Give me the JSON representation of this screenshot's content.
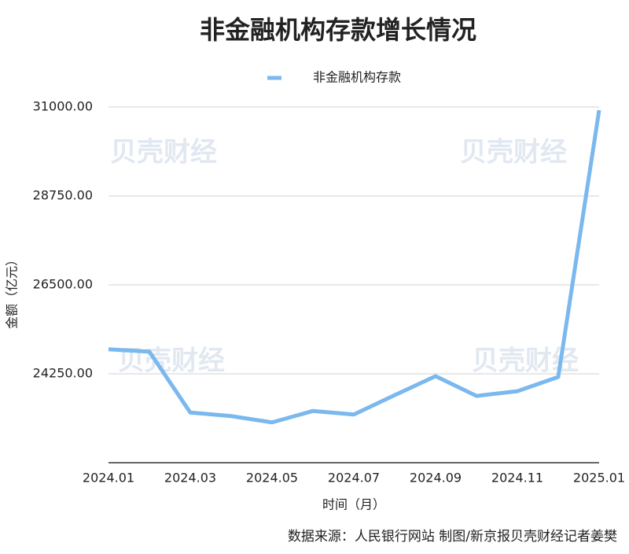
{
  "chart_data": {
    "type": "line",
    "title": "非金融机构存款增长情况",
    "categories": [
      "2024.01",
      null,
      "2024.03",
      null,
      "2024.05",
      null,
      "2024.07",
      null,
      "2024.09",
      null,
      "2024.11",
      null,
      "2025.01"
    ],
    "series": [
      {
        "name": "非金融机构存款",
        "color": "#7ab8ee",
        "values": [
          24870,
          24810,
          23270,
          23180,
          23020,
          23310,
          23220,
          23710,
          24190,
          23690,
          23810,
          24170,
          30920
        ]
      }
    ],
    "ylim": [
      22000,
      31000
    ],
    "yticks": [
      {
        "value": 24250,
        "label": "24250.00"
      },
      {
        "value": 26500,
        "label": "26500.00"
      },
      {
        "value": 28750,
        "label": "28750.00"
      },
      {
        "value": 31000,
        "label": "31000.00"
      }
    ],
    "grid": true,
    "x_label": "时间（月）",
    "y_label": "金额（亿元）",
    "legend": "top",
    "source": "数据来源：人民银行网站 制图/新京报贝壳财经记者姜樊",
    "watermark": "贝壳财经"
  }
}
